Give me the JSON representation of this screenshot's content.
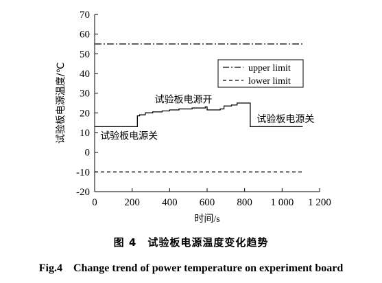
{
  "chart_data": {
    "type": "line",
    "title": "",
    "xlabel": "时间/s",
    "ylabel": "试验板电源温度/℃",
    "xlim": [
      0,
      1200
    ],
    "ylim": [
      -20,
      70
    ],
    "x_ticks": [
      0,
      200,
      400,
      600,
      800,
      1000,
      1200
    ],
    "x_tick_labels": [
      "0",
      "200",
      "400",
      "600",
      "800",
      "1 000",
      "1 200"
    ],
    "y_ticks": [
      -20,
      -10,
      0,
      10,
      20,
      30,
      40,
      50,
      60,
      70
    ],
    "y_tick_labels": [
      "-20",
      "-10",
      "0",
      "10",
      "20",
      "30",
      "40",
      "50",
      "60",
      "70"
    ],
    "grid": false,
    "legend_position": "right",
    "series": [
      {
        "values_xy": [
          [
            0,
            13
          ],
          [
            228,
            13
          ],
          [
            228,
            18.5
          ],
          [
            240,
            18.5
          ],
          [
            240,
            19
          ],
          [
            270,
            19
          ],
          [
            270,
            20
          ],
          [
            310,
            20
          ],
          [
            310,
            20.5
          ],
          [
            360,
            20.5
          ],
          [
            360,
            21
          ],
          [
            400,
            21
          ],
          [
            400,
            21.5
          ],
          [
            450,
            21.5
          ],
          [
            450,
            22
          ],
          [
            520,
            22
          ],
          [
            520,
            22.5
          ],
          [
            590,
            22.5
          ],
          [
            590,
            23
          ],
          [
            600,
            23
          ],
          [
            600,
            21.5
          ],
          [
            670,
            21.5
          ],
          [
            670,
            22
          ],
          [
            690,
            22
          ],
          [
            690,
            23.5
          ],
          [
            730,
            23.5
          ],
          [
            730,
            24
          ],
          [
            760,
            24
          ],
          [
            760,
            25
          ],
          [
            830,
            25
          ],
          [
            830,
            13
          ],
          [
            1110,
            13
          ]
        ],
        "style": "solid",
        "color": "#000000"
      },
      {
        "name": "upper limit",
        "values_xy": [
          [
            0,
            55
          ],
          [
            1110,
            55
          ]
        ],
        "style": "dashdot",
        "color": "#000000"
      },
      {
        "name": "lower limit",
        "values_xy": [
          [
            0,
            -10
          ],
          [
            1110,
            -10
          ]
        ],
        "style": "dashed",
        "color": "#000000"
      }
    ],
    "annotations": [
      {
        "text": "试验板电源关",
        "x": 30,
        "y": 8.5
      },
      {
        "text": "试验板电源开",
        "x": 320,
        "y": 27
      },
      {
        "text": "试验板电源关",
        "x": 865,
        "y": 17
      }
    ]
  },
  "captions": {
    "cn": "图 4　试验板电源温度变化趋势",
    "en": "Fig.4　Change trend of power temperature on experiment board"
  }
}
